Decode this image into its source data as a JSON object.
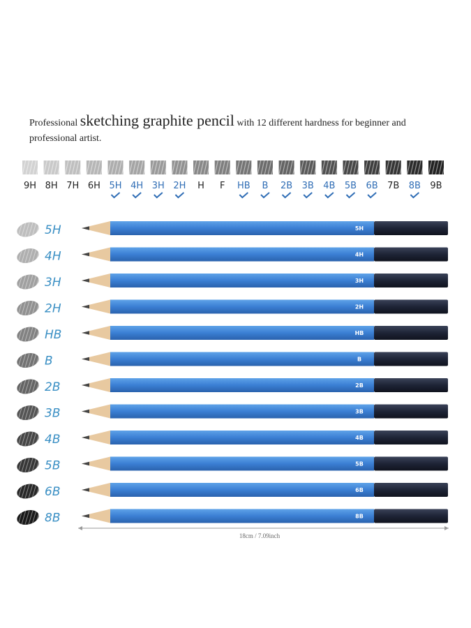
{
  "heading": {
    "lead": "Professional",
    "emphasis": "sketching graphite pencil",
    "rest": "with 12 different hardness for beginner and professional artist."
  },
  "hardness_scale": [
    {
      "grade": "9H",
      "included": false
    },
    {
      "grade": "8H",
      "included": false
    },
    {
      "grade": "7H",
      "included": false
    },
    {
      "grade": "6H",
      "included": false
    },
    {
      "grade": "5H",
      "included": true
    },
    {
      "grade": "4H",
      "included": true
    },
    {
      "grade": "3H",
      "included": true
    },
    {
      "grade": "2H",
      "included": true
    },
    {
      "grade": "H",
      "included": false
    },
    {
      "grade": "F",
      "included": false
    },
    {
      "grade": "HB",
      "included": true
    },
    {
      "grade": "B",
      "included": true
    },
    {
      "grade": "2B",
      "included": true
    },
    {
      "grade": "3B",
      "included": true
    },
    {
      "grade": "4B",
      "included": true
    },
    {
      "grade": "5B",
      "included": true
    },
    {
      "grade": "6B",
      "included": true
    },
    {
      "grade": "7B",
      "included": false
    },
    {
      "grade": "8B",
      "included": true
    },
    {
      "grade": "9B",
      "included": false
    }
  ],
  "pencils": [
    "5H",
    "4H",
    "3H",
    "2H",
    "HB",
    "B",
    "2B",
    "3B",
    "4B",
    "5B",
    "6B",
    "8B"
  ],
  "dimension": "18cm / 7.09inch"
}
